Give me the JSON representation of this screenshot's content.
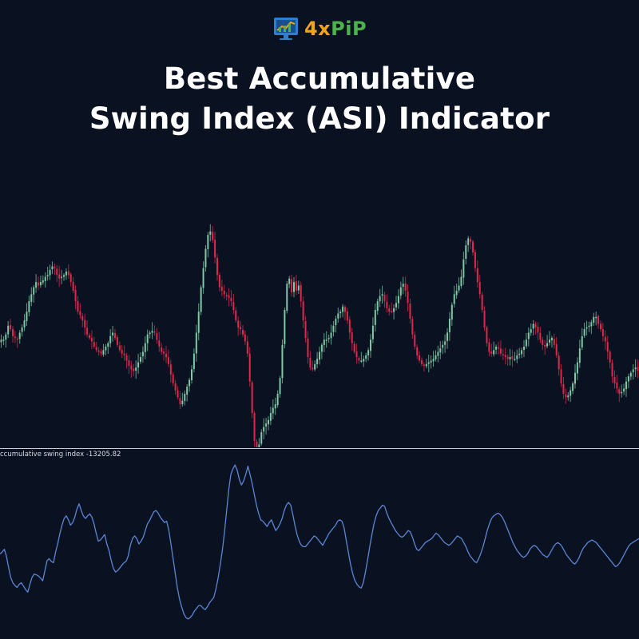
{
  "logo": {
    "part1": "4x",
    "part2": "PiP",
    "icon": "monitor-chart-icon"
  },
  "title": {
    "line1": "Best Accumulative",
    "line2": "Swing Index (ASI) Indicator"
  },
  "indicator_label": "ccumulative swing index -13205.82",
  "colors": {
    "background": "#0a1120",
    "bull": "#7fc9a6",
    "bear": "#e0284d",
    "asi_line": "#5b86d6",
    "divider": "#c8ccd6"
  },
  "chart_data": [
    {
      "type": "line",
      "series": [
        {
          "values": [
            396,
            396,
            402,
            412,
            408,
            400,
            398,
            396,
            404,
            410,
            418,
            428,
            440,
            448,
            456,
            462,
            458,
            462,
            464,
            468,
            470,
            476,
            480,
            478,
            470,
            466,
            468,
            470,
            474,
            470,
            462,
            452,
            440,
            428,
            424,
            418,
            410,
            402,
            398,
            394,
            388,
            384,
            382,
            380,
            384,
            388,
            392,
            400,
            404,
            398,
            390,
            384,
            380,
            378,
            372,
            366,
            362,
            360,
            364,
            370,
            376,
            382,
            392,
            402,
            404,
            406,
            404,
            396,
            388,
            382,
            380,
            376,
            368,
            356,
            346,
            338,
            330,
            322,
            326,
            334,
            342,
            350,
            362,
            380,
            404,
            428,
            456,
            478,
            500,
            516,
            520,
            510,
            490,
            470,
            456,
            452,
            448,
            446,
            444,
            440,
            430,
            418,
            410,
            408,
            402,
            394,
            380,
            348,
            312,
            280,
            272,
            276,
            290,
            296,
            300,
            304,
            312,
            318,
            322,
            334,
            352,
            390,
            430,
            460,
            466,
            450,
            462,
            452,
            458,
            440,
            418,
            398,
            376,
            364,
            362,
            368,
            374,
            382,
            390,
            396,
            396,
            398,
            404,
            412,
            420,
            426,
            428,
            434,
            428,
            418,
            404,
            392,
            382,
            376,
            372,
            372,
            374,
            378,
            384,
            396,
            412,
            430,
            440,
            446,
            448,
            440,
            432,
            428,
            428,
            432,
            438,
            446,
            456,
            460,
            452,
            438,
            420,
            402,
            388,
            378,
            372,
            368,
            366,
            368,
            370,
            372,
            374,
            378,
            382,
            386,
            390,
            394,
            404,
            420,
            436,
            448,
            452,
            458,
            468,
            488,
            504,
            512,
            508,
            496,
            478,
            462,
            448,
            430,
            410,
            392,
            382,
            380,
            384,
            388,
            386,
            380,
            378,
            376,
            374,
            376,
            374,
            374,
            378,
            380,
            384,
            388,
            396,
            404,
            408,
            414,
            410,
            404,
            396,
            390,
            388,
            392,
            396,
            398,
            390,
            378,
            362,
            346,
            334,
            330,
            332,
            338,
            346,
            358,
            370,
            386,
            400,
            408,
            410,
            412,
            416,
            422,
            422,
            414,
            408,
            400,
            394,
            382,
            370,
            354,
            346,
            340,
            334,
            336,
            340,
            348,
            354,
            358,
            362,
            364,
            360
          ]
        }
      ],
      "ylim": [
        280,
        560
      ]
    },
    {
      "type": "line",
      "series": [
        {
          "values": [
            -115,
            -112,
            -108,
            -118,
            -135,
            -150,
            -158,
            -162,
            -165,
            -160,
            -158,
            -163,
            -168,
            -172,
            -160,
            -150,
            -145,
            -146,
            -148,
            -151,
            -155,
            -140,
            -125,
            -122,
            -126,
            -128,
            -112,
            -100,
            -85,
            -72,
            -62,
            -58,
            -64,
            -72,
            -68,
            -60,
            -48,
            -40,
            -50,
            -58,
            -62,
            -58,
            -55,
            -60,
            -70,
            -84,
            -96,
            -94,
            -90,
            -86,
            -100,
            -110,
            -124,
            -136,
            -142,
            -140,
            -136,
            -132,
            -128,
            -126,
            -118,
            -102,
            -92,
            -88,
            -92,
            -100,
            -96,
            -90,
            -80,
            -70,
            -65,
            -58,
            -52,
            -50,
            -54,
            -60,
            -64,
            -68,
            -66,
            -80,
            -100,
            -122,
            -144,
            -166,
            -182,
            -194,
            -204,
            -210,
            -212,
            -210,
            -206,
            -200,
            -196,
            -192,
            -192,
            -196,
            -198,
            -194,
            -188,
            -184,
            -180,
            -168,
            -152,
            -132,
            -110,
            -84,
            -52,
            -20,
            4,
            12,
            18,
            10,
            -4,
            -12,
            -6,
            4,
            16,
            4,
            -10,
            -26,
            -42,
            -54,
            -64,
            -66,
            -70,
            -74,
            -68,
            -64,
            -72,
            -80,
            -76,
            -70,
            -62,
            -50,
            -42,
            -38,
            -42,
            -56,
            -72,
            -86,
            -96,
            -102,
            -104,
            -104,
            -100,
            -96,
            -92,
            -88,
            -90,
            -94,
            -98,
            -102,
            -96,
            -90,
            -84,
            -80,
            -76,
            -72,
            -66,
            -64,
            -66,
            -76,
            -94,
            -112,
            -130,
            -144,
            -154,
            -160,
            -164,
            -166,
            -158,
            -142,
            -124,
            -104,
            -86,
            -70,
            -58,
            -50,
            -46,
            -42,
            -44,
            -54,
            -62,
            -68,
            -74,
            -80,
            -84,
            -88,
            -90,
            -88,
            -84,
            -80,
            -82,
            -90,
            -100,
            -108,
            -110,
            -106,
            -102,
            -98,
            -96,
            -94,
            -92,
            -88,
            -84,
            -86,
            -90,
            -94,
            -98,
            -100,
            -102,
            -100,
            -96,
            -92,
            -88,
            -90,
            -92,
            -98,
            -104,
            -112,
            -118,
            -122,
            -126,
            -128,
            -122,
            -114,
            -104,
            -92,
            -80,
            -70,
            -62,
            -58,
            -56,
            -54,
            -56,
            -60,
            -66,
            -74,
            -82,
            -90,
            -98,
            -104,
            -110,
            -114,
            -118,
            -120,
            -118,
            -114,
            -108,
            -104,
            -102,
            -104,
            -108,
            -112,
            -116,
            -118,
            -120,
            -116,
            -110,
            -104,
            -100,
            -98,
            -100,
            -104,
            -110,
            -116,
            -120,
            -124,
            -128,
            -130,
            -126,
            -120,
            -112,
            -106,
            -102,
            -98,
            -96,
            -94,
            -96,
            -98,
            -102,
            -106,
            -110,
            -114,
            -118,
            -122,
            -126,
            -130,
            -134,
            -132,
            -128,
            -122,
            -116,
            -110,
            -104,
            -100,
            -98,
            -96,
            -94,
            -92
          ],
          "note_unused": ""
        }
      ],
      "ylim": [
        -230,
        30
      ]
    }
  ]
}
